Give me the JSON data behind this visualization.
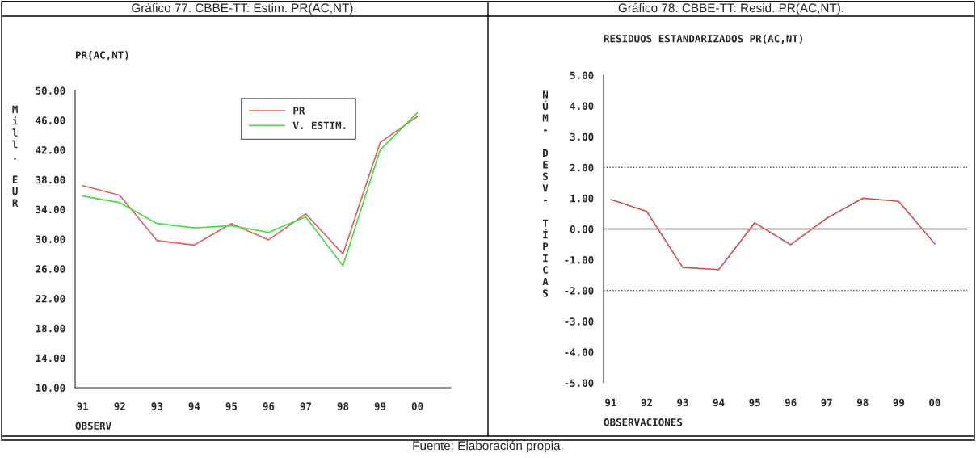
{
  "chart_data": [
    {
      "type": "line",
      "title": "Gráfico 77. CBBE-TT: Estim. PR(AC,NT).",
      "subtitle": "PR(AC,NT)",
      "xlabel": "OBSERV",
      "ylabel": "Mill. EUR",
      "categories": [
        "91",
        "92",
        "93",
        "94",
        "95",
        "96",
        "97",
        "98",
        "99",
        "00"
      ],
      "series": [
        {
          "name": "PR",
          "color": "#e06060",
          "values": [
            37.2,
            35.9,
            29.8,
            29.2,
            32.1,
            29.9,
            33.4,
            28.0,
            43.0,
            46.5
          ]
        },
        {
          "name": "V. ESTIM.",
          "color": "#40e040",
          "values": [
            35.8,
            34.9,
            32.1,
            31.5,
            31.8,
            30.9,
            33.0,
            26.4,
            42.0,
            47.0
          ]
        }
      ],
      "ylim": [
        10,
        50
      ],
      "yticks": [
        {
          "value": 10,
          "label": "10.00"
        },
        {
          "value": 14,
          "label": "14.00"
        },
        {
          "value": 18,
          "label": "18.00"
        },
        {
          "value": 22,
          "label": "22.00"
        },
        {
          "value": 26,
          "label": "26.00"
        },
        {
          "value": 30,
          "label": "30.00"
        },
        {
          "value": 34,
          "label": "34.00"
        },
        {
          "value": 38,
          "label": "38.00"
        },
        {
          "value": 42,
          "label": "42.00"
        },
        {
          "value": 46,
          "label": "46.00"
        },
        {
          "value": 50,
          "label": "50.00"
        }
      ],
      "legend": "top right",
      "grid": false,
      "marker": "none",
      "line_style": "solid"
    },
    {
      "type": "line",
      "title": "Gráfico 78. CBBE-TT: Resid. PR(AC,NT).",
      "subtitle": "RESIDUOS ESTANDARIZADOS PR(AC,NT)",
      "xlabel": "OBSERVACIONES",
      "ylabel": "NÚM- DESV- TÍPICAS",
      "categories": [
        "91",
        "92",
        "93",
        "94",
        "95",
        "96",
        "97",
        "98",
        "99",
        "00"
      ],
      "series": [
        {
          "color": "#d05050",
          "values": [
            0.96,
            0.57,
            -1.25,
            -1.32,
            0.2,
            -0.51,
            0.35,
            1.0,
            0.9,
            -0.48
          ]
        }
      ],
      "ylim": [
        -5,
        5
      ],
      "yticks": [
        {
          "value": -5,
          "label": "-5.00"
        },
        {
          "value": -4,
          "label": "-4.00"
        },
        {
          "value": -3,
          "label": "-3.00"
        },
        {
          "value": -2,
          "label": "-2.00"
        },
        {
          "value": -1,
          "label": "-1.00"
        },
        {
          "value": 0,
          "label": "0.00"
        },
        {
          "value": 1,
          "label": "1.00"
        },
        {
          "value": 2,
          "label": "2.00"
        },
        {
          "value": 3,
          "label": "3.00"
        },
        {
          "value": 4,
          "label": "4.00"
        },
        {
          "value": 5,
          "label": "5.00"
        }
      ],
      "ref_lines": [
        {
          "axis": "y",
          "value": 0,
          "color": "#505050",
          "line_style": "solid"
        },
        {
          "axis": "y",
          "value": 2,
          "color": "#505050",
          "line_style": "dotted"
        },
        {
          "axis": "y",
          "value": -2,
          "color": "#505050",
          "line_style": "dotted"
        }
      ],
      "annotations": [
        "Fuente: Elaboración propia."
      ],
      "legend": false,
      "grid": false,
      "marker": "none",
      "line_style": "solid"
    }
  ]
}
